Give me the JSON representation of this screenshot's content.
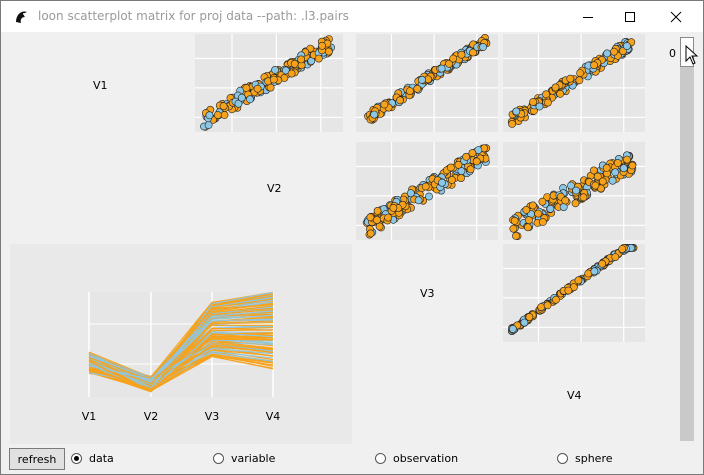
{
  "window": {
    "title": "loon scatterplot matrix for proj data --path: .l3.pairs"
  },
  "matrix": {
    "variables": [
      "V1",
      "V2",
      "V3",
      "V4"
    ],
    "diagonal_labels": [
      "V1",
      "V2",
      "V3",
      "V4"
    ],
    "point_colors": {
      "orange": "#f7a21b",
      "blue": "#8cc7e6",
      "outline": "#222222",
      "panel_bg": "#e6e6e6",
      "grid": "#ffffff"
    }
  },
  "parallel_plot": {
    "axis_labels": [
      "V1",
      "V2",
      "V3",
      "V4"
    ],
    "series_colors": [
      "#f7a21b",
      "#8cc7e6"
    ]
  },
  "slider": {
    "value_label": "0"
  },
  "controls": {
    "refresh_label": "refresh",
    "options": [
      {
        "label": "data",
        "selected": true
      },
      {
        "label": "variable",
        "selected": false
      },
      {
        "label": "observation",
        "selected": false
      },
      {
        "label": "sphere",
        "selected": false
      }
    ]
  }
}
